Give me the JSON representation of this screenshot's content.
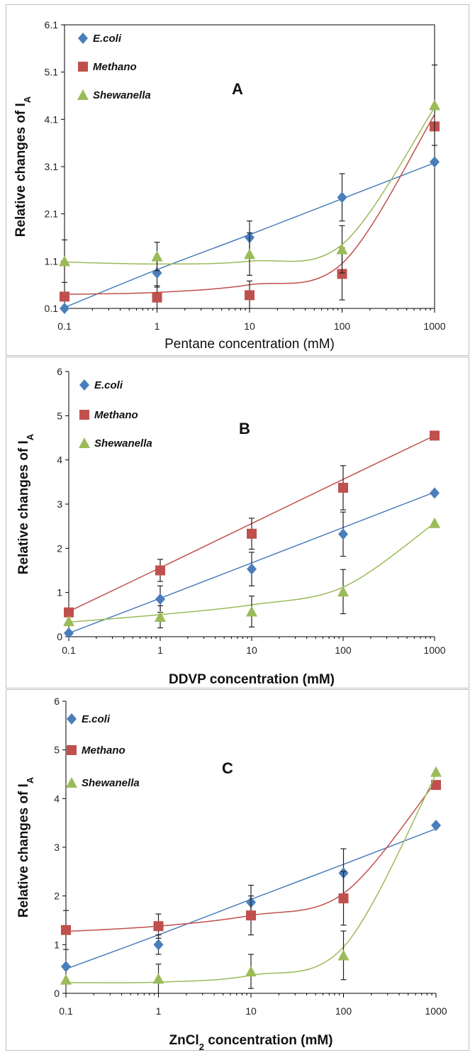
{
  "chart_data": [
    {
      "type": "scatter",
      "panel_label": "A",
      "xlabel": "Pentane concentration (mM)",
      "xlabel_bold": false,
      "ylabel": "Relative changes of I",
      "ylabel_sub": "A",
      "x_scale": "log",
      "x": [
        0.1,
        1,
        10,
        100,
        1000
      ],
      "x_ticks": [
        "0.1",
        "1",
        "10",
        "100",
        "1000"
      ],
      "ylim": [
        0.1,
        6.1
      ],
      "y_ticks": [
        "0.1",
        "1.1",
        "2.1",
        "3.1",
        "4.1",
        "5.1",
        "6.1"
      ],
      "legend_position": "top-left",
      "series": [
        {
          "name": "E.coli",
          "marker": "diamond",
          "color": "#4a7ebb",
          "values": [
            0.1,
            0.85,
            1.6,
            2.45,
            3.2
          ],
          "errors": [
            0,
            0.3,
            0.35,
            0.5,
            0
          ],
          "fit": [
            0.12,
            0.92,
            1.66,
            2.42,
            3.18
          ]
        },
        {
          "name": "Methano",
          "marker": "square",
          "color": "#c0504d",
          "values": [
            0.35,
            0.33,
            0.38,
            0.83,
            3.95
          ],
          "errors": [
            0,
            0.25,
            0.3,
            0.55,
            0
          ],
          "fit": [
            0.4,
            0.44,
            0.6,
            1.05,
            4.2
          ]
        },
        {
          "name": "Shewanella",
          "marker": "triangle",
          "color": "#9bbb59",
          "values": [
            1.1,
            1.2,
            1.25,
            1.35,
            4.4
          ],
          "errors": [
            0.45,
            0.3,
            0.45,
            0.5,
            0.85
          ],
          "fit": [
            1.08,
            1.04,
            1.1,
            1.45,
            4.35
          ]
        }
      ]
    },
    {
      "type": "scatter",
      "panel_label": "B",
      "xlabel": "DDVP concentration (mM)",
      "xlabel_bold": true,
      "ylabel": "Relative changes of I",
      "ylabel_sub": "A",
      "x_scale": "log",
      "x": [
        0.1,
        1,
        10,
        100,
        1000
      ],
      "x_ticks": [
        "0.1",
        "1",
        "10",
        "100",
        "1000"
      ],
      "ylim": [
        0,
        6
      ],
      "y_ticks": [
        "0",
        "1",
        "2",
        "3",
        "4",
        "5",
        "6"
      ],
      "legend_position": "top-left",
      "series": [
        {
          "name": "E.coli",
          "marker": "diamond",
          "color": "#4a7ebb",
          "values": [
            0.08,
            0.85,
            1.53,
            2.32,
            3.25
          ],
          "errors": [
            0,
            0.3,
            0.38,
            0.5,
            0
          ],
          "fit": [
            0.08,
            0.87,
            1.67,
            2.47,
            3.27
          ]
        },
        {
          "name": "Methano",
          "marker": "square",
          "color": "#c0504d",
          "values": [
            0.55,
            1.5,
            2.33,
            3.37,
            4.55
          ],
          "errors": [
            0,
            0.25,
            0.35,
            0.5,
            0
          ],
          "fit": [
            0.57,
            1.56,
            2.56,
            3.56,
            4.55
          ]
        },
        {
          "name": "Shewanella",
          "marker": "triangle",
          "color": "#9bbb59",
          "values": [
            0.35,
            0.45,
            0.57,
            1.02,
            2.57
          ],
          "errors": [
            0,
            0.25,
            0.35,
            0.5,
            0
          ],
          "fit": [
            0.33,
            0.5,
            0.72,
            1.12,
            2.57
          ]
        }
      ]
    },
    {
      "type": "scatter",
      "panel_label": "C",
      "xlabel": "ZnCl",
      "xlabel_sub": "2",
      "xlabel_tail": " concentration (mM)",
      "xlabel_bold": true,
      "ylabel": "Relative changes of I",
      "ylabel_sub": "A",
      "x_scale": "log",
      "x": [
        0.1,
        1,
        10,
        100,
        1000
      ],
      "x_ticks": [
        "0.1",
        "1",
        "10",
        "100",
        "1000"
      ],
      "ylim": [
        0,
        6
      ],
      "y_ticks": [
        "0",
        "1",
        "2",
        "3",
        "4",
        "5",
        "6"
      ],
      "legend_position": "top-left",
      "series": [
        {
          "name": "E.coli",
          "marker": "diamond",
          "color": "#4a7ebb",
          "values": [
            0.55,
            1.0,
            1.87,
            2.47,
            3.45
          ],
          "errors": [
            0,
            0.2,
            0.35,
            0.5,
            0
          ],
          "fit": [
            0.5,
            1.2,
            1.93,
            2.65,
            3.38
          ]
        },
        {
          "name": "Methano",
          "marker": "square",
          "color": "#c0504d",
          "values": [
            1.3,
            1.38,
            1.6,
            1.95,
            4.28
          ],
          "errors": [
            0.4,
            0.25,
            0.4,
            0.55,
            0
          ],
          "fit": [
            1.27,
            1.38,
            1.6,
            2.05,
            4.35
          ]
        },
        {
          "name": "Shewanella",
          "marker": "triangle",
          "color": "#9bbb59",
          "values": [
            0.28,
            0.3,
            0.45,
            0.78,
            4.55
          ],
          "errors": [
            0,
            0.3,
            0.35,
            0.5,
            0
          ],
          "fit": [
            0.22,
            0.23,
            0.37,
            0.95,
            4.5
          ]
        }
      ]
    }
  ]
}
